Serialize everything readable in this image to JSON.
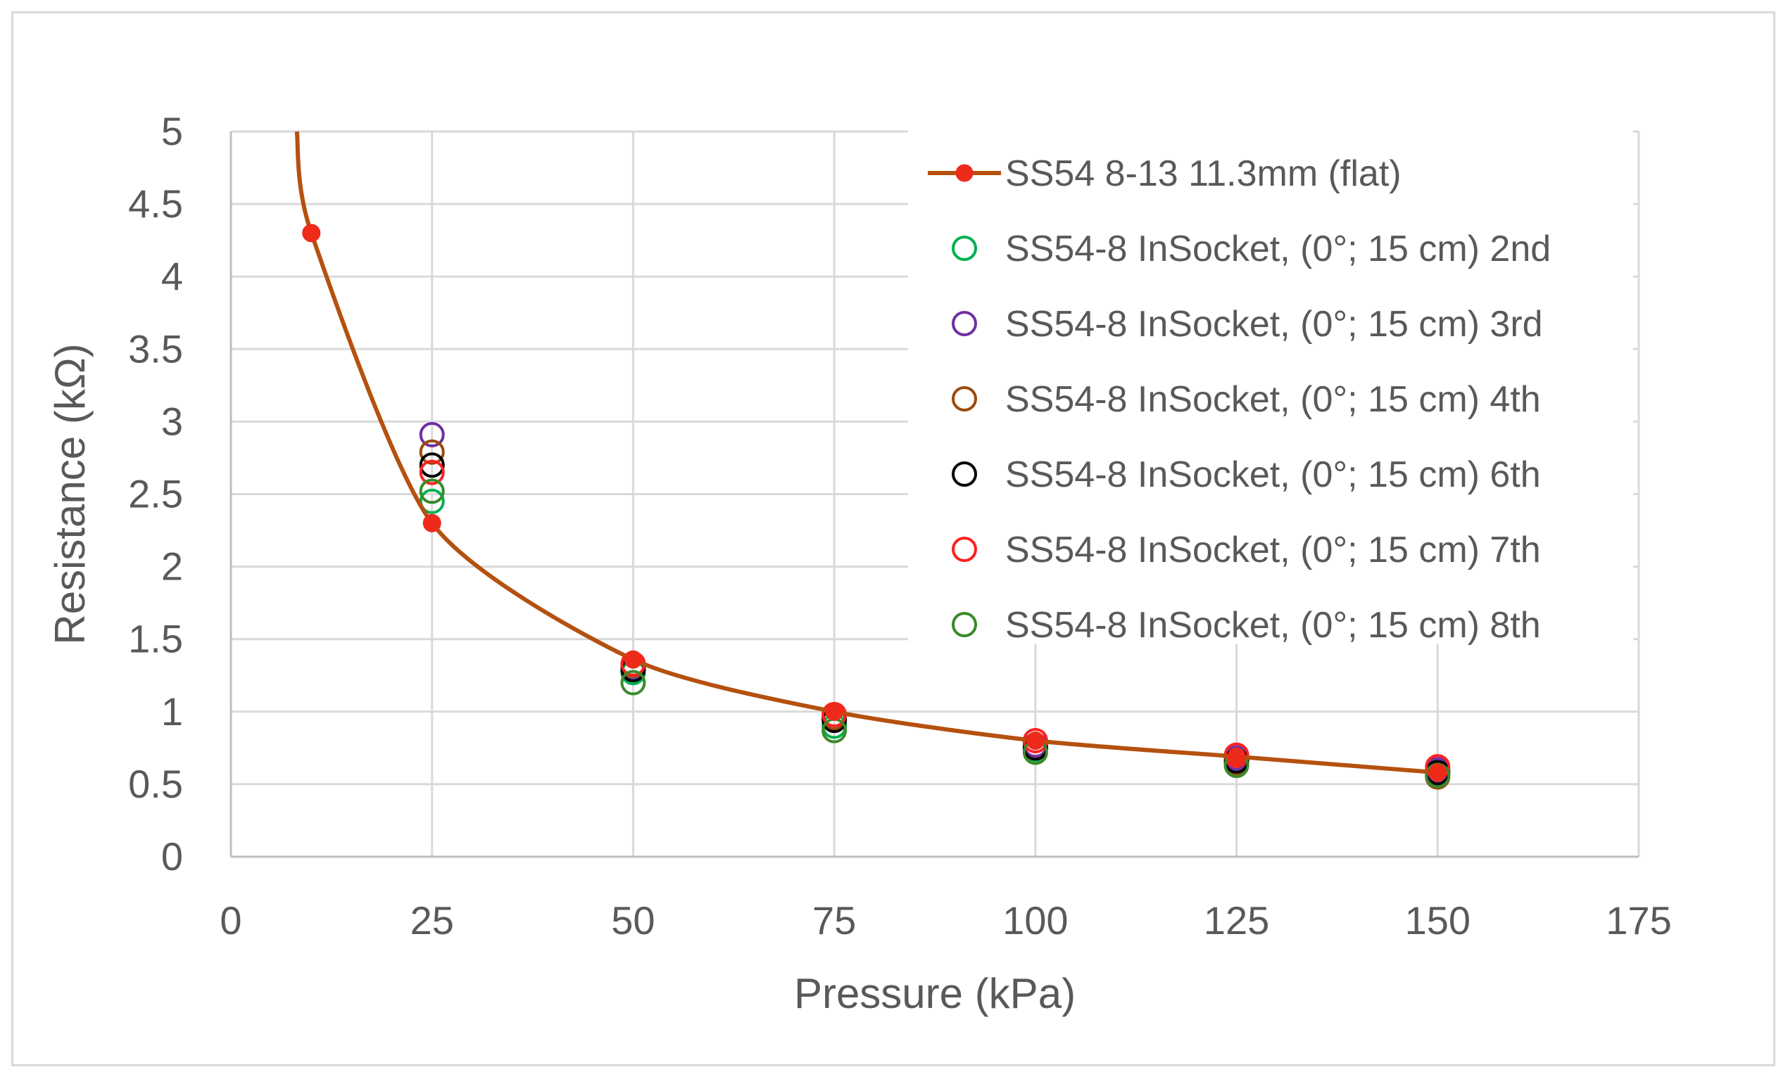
{
  "chart_data": {
    "type": "scatter",
    "title": "",
    "xlabel": "Pressure (kPa)",
    "ylabel": "Resistance (kΩ)",
    "xlim": [
      0,
      175
    ],
    "ylim": [
      0,
      5
    ],
    "xticks": [
      "0",
      "25",
      "50",
      "75",
      "100",
      "125",
      "150",
      "175"
    ],
    "yticks": [
      "0",
      "0.5",
      "1",
      "1.5",
      "2",
      "2.5",
      "3",
      "3.5",
      "4",
      "4.5",
      "5"
    ],
    "grid": true,
    "legend_position": "top-right",
    "series": [
      {
        "name": "SS54 8-13 11.3mm (flat)",
        "style": "line-marker",
        "color": "#b5510f",
        "marker_color": "#ee2a1b",
        "x": [
          10,
          25,
          50,
          75,
          100,
          125,
          150
        ],
        "y": [
          4.3,
          2.3,
          1.36,
          1.0,
          0.8,
          0.69,
          0.58
        ],
        "curve_extends_above": [
          8.2,
          5.0
        ]
      },
      {
        "name": "SS54-8 InSocket, (0°; 15 cm) 2nd",
        "style": "open-circle",
        "color": "#00b050",
        "x": [
          25,
          50,
          75,
          100,
          125,
          150
        ],
        "y": [
          2.45,
          1.27,
          0.9,
          0.74,
          0.65,
          0.57
        ]
      },
      {
        "name": "SS54-8 InSocket, (0°; 15 cm) 3rd",
        "style": "open-circle",
        "color": "#7030a0",
        "x": [
          25,
          50,
          75,
          100,
          125,
          150
        ],
        "y": [
          2.91,
          1.3,
          0.95,
          0.77,
          0.68,
          0.6
        ]
      },
      {
        "name": "SS54-8 InSocket, (0°; 15 cm) 4th",
        "style": "open-circle",
        "color": "#9c4a0c",
        "x": [
          25,
          50,
          75,
          100,
          125,
          150
        ],
        "y": [
          2.79,
          1.32,
          0.96,
          0.75,
          0.64,
          0.55
        ]
      },
      {
        "name": "SS54-8 InSocket, (0°; 15 cm) 6th",
        "style": "open-circle",
        "color": "#000000",
        "x": [
          25,
          50,
          75,
          100,
          125,
          150
        ],
        "y": [
          2.7,
          1.29,
          0.94,
          0.75,
          0.66,
          0.58
        ]
      },
      {
        "name": "SS54-8 InSocket, (0°; 15 cm) 7th",
        "style": "open-circle",
        "color": "#ff2020",
        "x": [
          25,
          50,
          75,
          100,
          125,
          150
        ],
        "y": [
          2.65,
          1.33,
          0.98,
          0.8,
          0.7,
          0.62
        ]
      },
      {
        "name": "SS54-8 InSocket, (0°; 15 cm) 8th",
        "style": "open-circle",
        "color": "#3a8a2a",
        "x": [
          25,
          50,
          75,
          100,
          125,
          150
        ],
        "y": [
          2.52,
          1.2,
          0.87,
          0.72,
          0.63,
          0.56
        ]
      }
    ]
  }
}
